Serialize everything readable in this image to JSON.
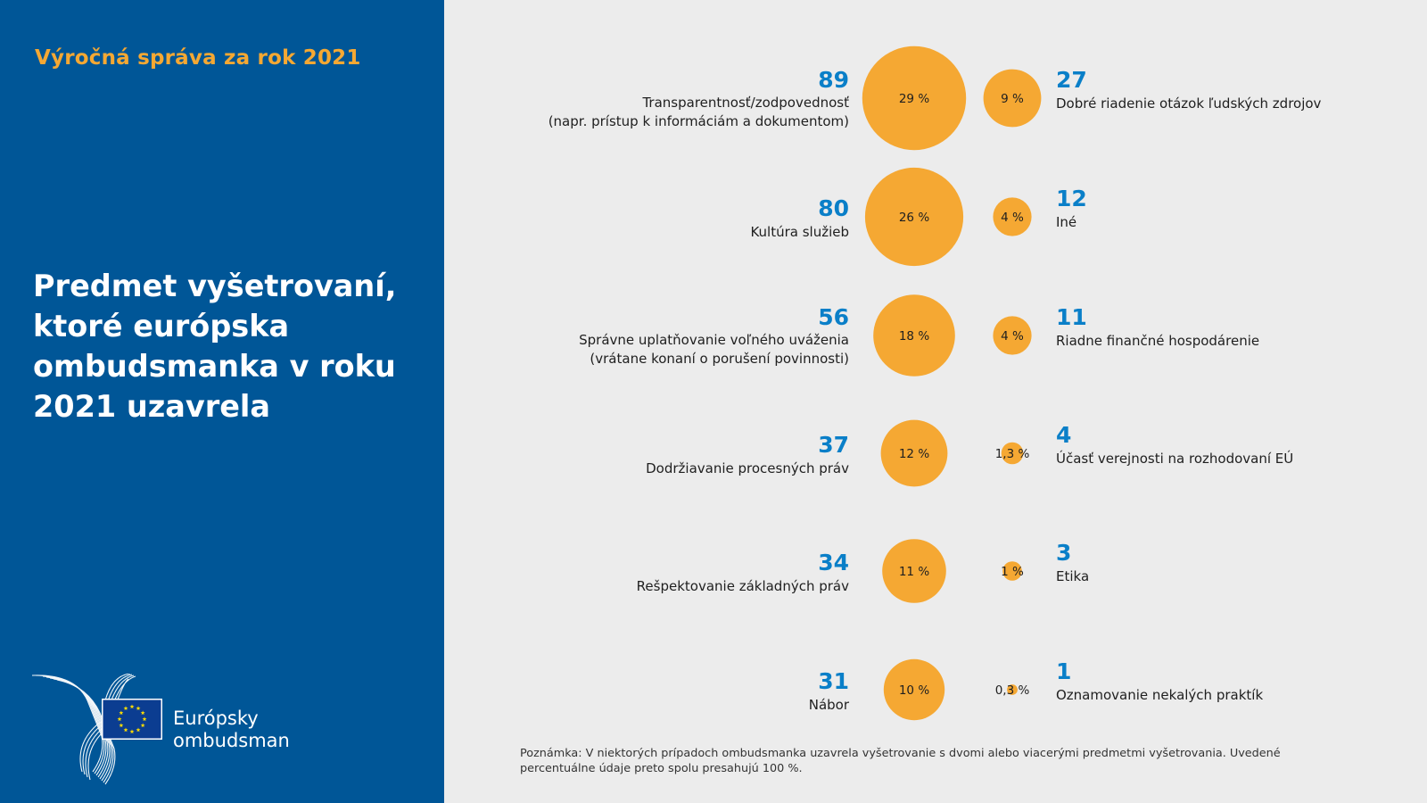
{
  "sidebar": {
    "report_title": "Výročná správa za rok 2021",
    "main_title": "Predmet vyšetrovaní, ktoré európska ombudsmanka v roku 2021 uzavrela",
    "logo": {
      "icon": "european-ombudsman-logo-icon",
      "line1": "Európsky",
      "line2": "ombudsman"
    }
  },
  "colors": {
    "sidebar_bg": "#005697",
    "accent_orange": "#f5a833",
    "number_blue": "#0a7fc8",
    "background": "#ececec"
  },
  "chart_data": {
    "type": "bubble",
    "title": "Predmet vyšetrovaní, ktoré európska ombudsmanka v roku 2021 uzavrela",
    "size_encoding": "area proportional to percentage",
    "left_column": [
      {
        "count": "89",
        "value": 29,
        "pct_label": "29 %",
        "label_lines": [
          "Transparentnosť/zodpovednosť",
          "(napr. prístup k informáciám a dokumentom)"
        ]
      },
      {
        "count": "80",
        "value": 26,
        "pct_label": "26 %",
        "label_lines": [
          "Kultúra služieb"
        ]
      },
      {
        "count": "56",
        "value": 18,
        "pct_label": "18 %",
        "label_lines": [
          "Správne uplatňovanie voľného uváženia",
          "(vrátane konaní o porušení povinnosti)"
        ]
      },
      {
        "count": "37",
        "value": 12,
        "pct_label": "12 %",
        "label_lines": [
          "Dodržiavanie procesných práv"
        ]
      },
      {
        "count": "34",
        "value": 11,
        "pct_label": "11 %",
        "label_lines": [
          "Rešpektovanie základných práv"
        ]
      },
      {
        "count": "31",
        "value": 10,
        "pct_label": "10 %",
        "label_lines": [
          "Nábor"
        ]
      }
    ],
    "right_column": [
      {
        "count": "27",
        "value": 9,
        "pct_label": "9 %",
        "label_lines": [
          "Dobré riadenie otázok ľudských zdrojov"
        ]
      },
      {
        "count": "12",
        "value": 4,
        "pct_label": "4 %",
        "label_lines": [
          "Iné"
        ]
      },
      {
        "count": "11",
        "value": 4,
        "pct_label": "4 %",
        "label_lines": [
          "Riadne finančné hospodárenie"
        ]
      },
      {
        "count": "4",
        "value": 1.3,
        "pct_label": "1,3 %",
        "label_lines": [
          "Účasť verejnosti na rozhodovaní EÚ"
        ]
      },
      {
        "count": "3",
        "value": 1,
        "pct_label": "1 %",
        "label_lines": [
          "Etika"
        ]
      },
      {
        "count": "1",
        "value": 0.3,
        "pct_label": "0,3 %",
        "label_lines": [
          "Oznamovanie nekalých praktík"
        ]
      }
    ]
  },
  "footnote": "Poznámka: V niektorých prípadoch ombudsmanka uzavrela vyšetrovanie s dvomi alebo viacerými predmetmi vyšetrovania. Uvedené percentuálne údaje preto spolu presahujú 100 %."
}
